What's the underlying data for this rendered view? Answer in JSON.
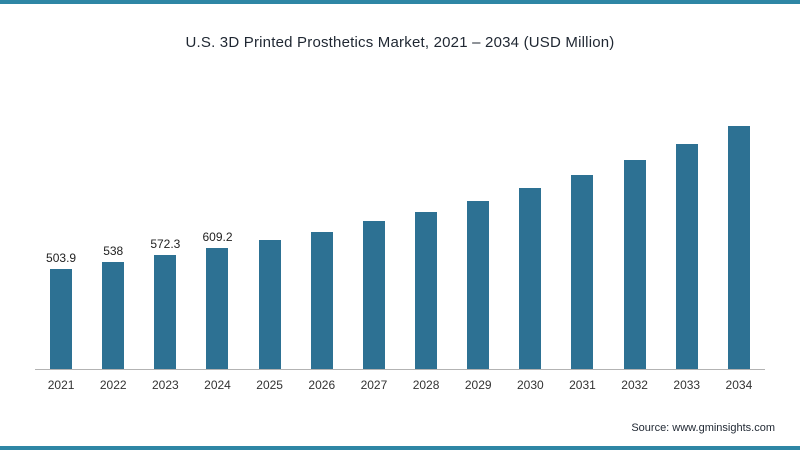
{
  "chart_data": {
    "type": "bar",
    "title": "U.S. 3D Printed Prosthetics Market, 2021 – 2034 (USD Million)",
    "categories": [
      "2021",
      "2022",
      "2023",
      "2024",
      "2025",
      "2026",
      "2027",
      "2028",
      "2029",
      "2030",
      "2031",
      "2032",
      "2033",
      "2034"
    ],
    "values": [
      503.9,
      538,
      572.3,
      609.2,
      650,
      692,
      745,
      792,
      848,
      910,
      977,
      1052,
      1133,
      1224
    ],
    "data_labels": [
      "503.9",
      "538",
      "572.3",
      "609.2",
      "",
      "",
      "",
      "",
      "",
      "",
      "",
      "",
      "",
      ""
    ],
    "xlabel": "",
    "ylabel": "",
    "ylim": [
      0,
      1300
    ],
    "grid": false,
    "legend": false,
    "bar_color": "#2d7193",
    "axis_line_color": "#b3b3b3"
  },
  "colors": {
    "accent_border": "#2e86a5",
    "bar": "#2d7193"
  },
  "source": {
    "label": "Source: www.gminsights.com"
  }
}
